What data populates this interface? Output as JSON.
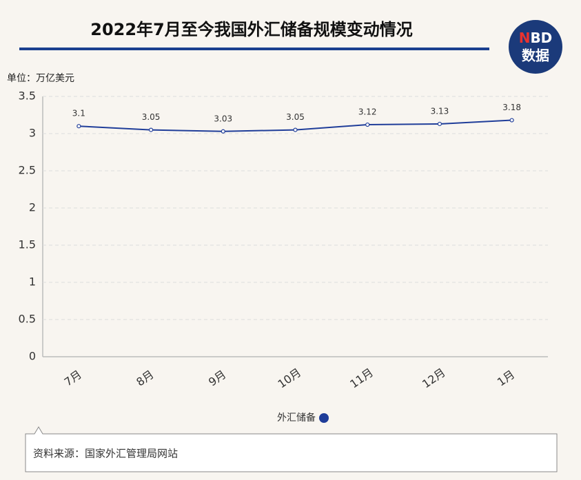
{
  "chart_data": {
    "type": "line",
    "title": "2022年7月至今我国外汇储备规模变动情况",
    "y_label": "单位：万亿美元",
    "categories": [
      "7月",
      "8月",
      "9月",
      "10月",
      "11月",
      "12月",
      "1月"
    ],
    "series": [
      {
        "name": "外汇储备",
        "color": "#1f3d99",
        "values": [
          3.1,
          3.05,
          3.03,
          3.05,
          3.12,
          3.13,
          3.18
        ]
      }
    ],
    "ylim": [
      0,
      3.5
    ],
    "yticks": [
      0,
      0.5,
      1,
      1.5,
      2,
      2.5,
      3,
      3.5
    ],
    "grid": true,
    "source": "资料来源：国家外汇管理局网站",
    "logo": {
      "top": "NBD",
      "bottom": "数据"
    }
  }
}
